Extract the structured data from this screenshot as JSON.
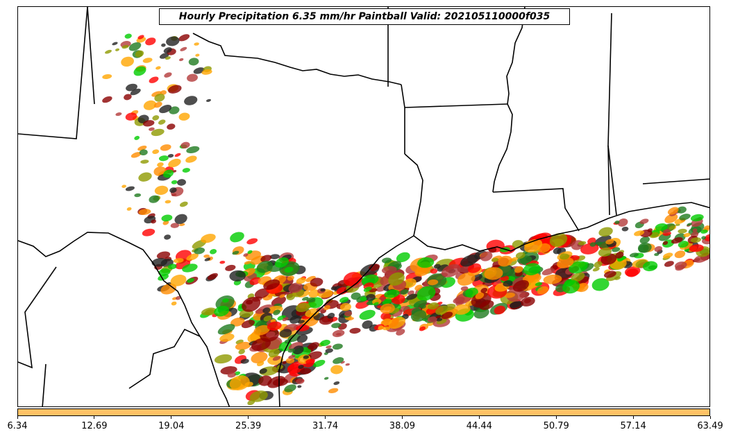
{
  "title": "Hourly Precipitation 6.35 mm/hr Paintball Valid: 202105110000f035",
  "colorbar": {
    "color": "#ffc266",
    "ticks": [
      "6.34",
      "12.69",
      "19.04",
      "25.39",
      "31.74",
      "38.09",
      "44.44",
      "50.79",
      "57.14",
      "63.49"
    ]
  },
  "paintball_colors": [
    "#8b0000",
    "#ff0000",
    "#ff8c00",
    "#ffa500",
    "#8f9a00",
    "#00cc00",
    "#1f7a1f",
    "#222222",
    "#b33a3a"
  ]
}
